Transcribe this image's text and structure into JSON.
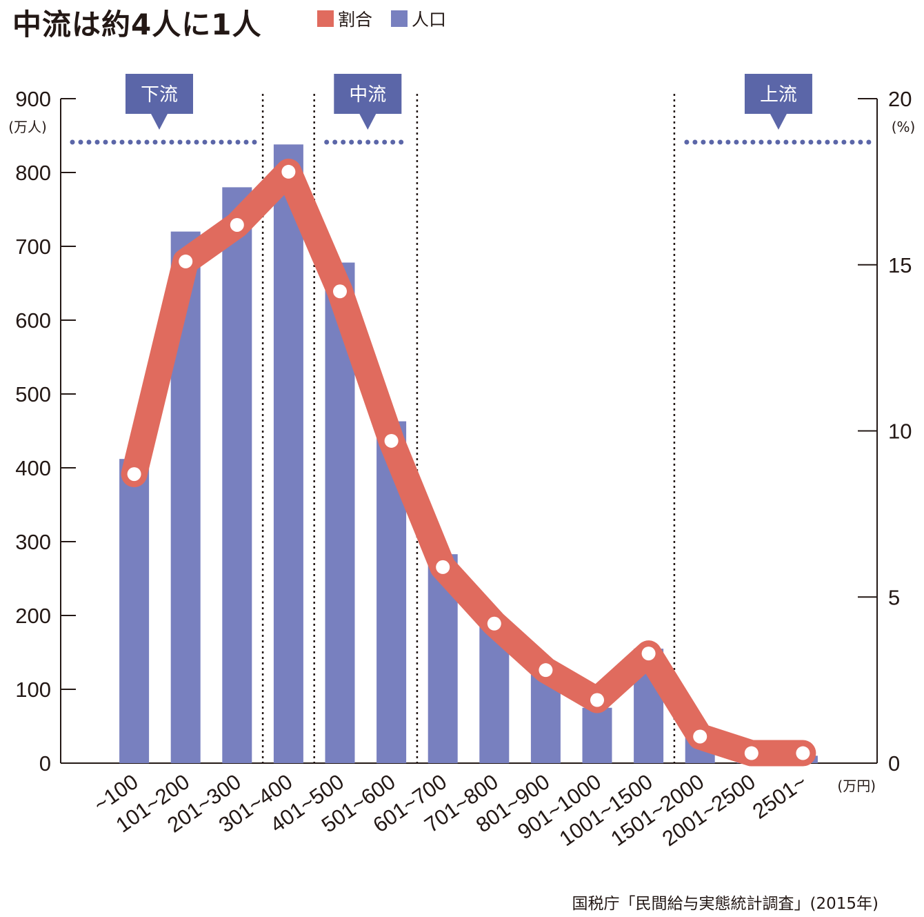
{
  "title": "中流は約4人に1人",
  "legend": [
    {
      "label": "割合",
      "color": "#e06b5e"
    },
    {
      "label": "人口",
      "color": "#7880bf"
    }
  ],
  "source": "国税庁「民間給与実態統計調査」(2015年)",
  "chart_data": {
    "type": "bar+line",
    "categories": [
      "~100",
      "101~200",
      "201~300",
      "301~400",
      "401~500",
      "501~600",
      "601~700",
      "701~800",
      "801~900",
      "901~1000",
      "1001~1500",
      "1501~2000",
      "2001~2500",
      "2501~"
    ],
    "x_unit": "(万円)",
    "series": [
      {
        "name": "人口",
        "type": "bar",
        "axis": "left",
        "color": "#7880bf",
        "values": [
          412,
          720,
          780,
          838,
          678,
          463,
          283,
          195,
          120,
          75,
          155,
          42,
          12,
          10
        ]
      },
      {
        "name": "割合",
        "type": "line",
        "axis": "right",
        "color": "#e06b5e",
        "values": [
          8.7,
          15.1,
          16.2,
          17.8,
          14.2,
          9.7,
          5.9,
          4.2,
          2.8,
          1.9,
          3.3,
          0.8,
          0.3,
          0.3
        ]
      }
    ],
    "y_left": {
      "min": 0,
      "max": 900,
      "ticks": [
        0,
        100,
        200,
        300,
        400,
        500,
        600,
        700,
        800,
        900
      ],
      "unit": "(万人)"
    },
    "y_right": {
      "min": 0,
      "max": 20,
      "ticks": [
        0,
        5,
        10,
        15,
        20
      ],
      "unit": "(%)"
    },
    "classes": [
      {
        "label": "下流",
        "from_index": 0,
        "to_index": 2
      },
      {
        "label": "中流",
        "from_index": 4,
        "to_index": 5
      },
      {
        "label": "上流",
        "from_index": 11,
        "to_index": 13
      }
    ],
    "divider_after_index": [
      2,
      3,
      5,
      10
    ],
    "callout_color": "#5b66a8",
    "dot_color": "#5b66a8"
  }
}
